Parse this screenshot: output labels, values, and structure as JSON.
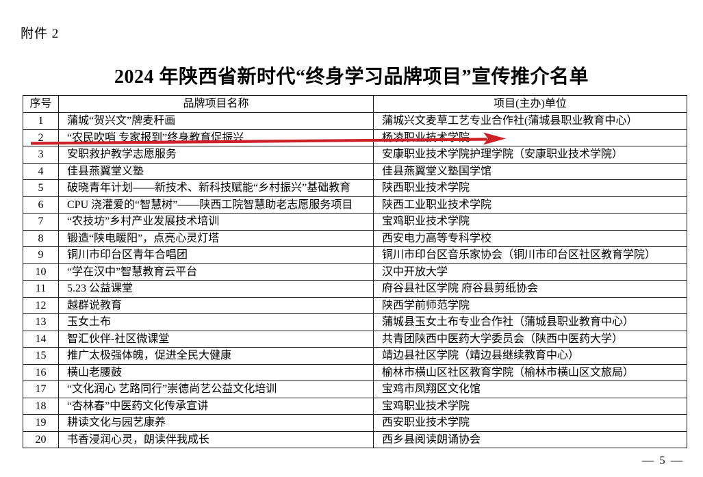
{
  "page": {
    "attachment_label": "附件 2",
    "title": "2024 年陕西省新时代“终身学习品牌项目”宣传推介名单",
    "page_number": "— 5 —"
  },
  "table": {
    "headers": [
      "序号",
      "品牌项目名称",
      "项目(主办)单位"
    ],
    "rows": [
      [
        "1",
        "蒲城“贺兴文”牌麦秆画",
        "蒲城兴文麦草工艺专业合作社(蒲城县职业教育中心）"
      ],
      [
        "2",
        "“农民吹哨 专家报到”终身教育促振兴",
        "杨凌职业技术学院"
      ],
      [
        "3",
        "安职救护教学志愿服务",
        "安康职业技术学院护理学院（安康职业技术学院）"
      ],
      [
        "4",
        "佳县燕翼堂义塾",
        "佳县燕翼堂义塾国学馆"
      ],
      [
        "5",
        "破晓青年计划——新技术、新科技赋能“乡村振兴”基础教育",
        "陕西职业技术学院"
      ],
      [
        "6",
        "CPU 浇灌爱的“智慧树”——陕西工院智慧助老志愿服务项目",
        "陕西工业职业技术学院"
      ],
      [
        "7",
        "“农技坊”乡村产业发展技术培训",
        "宝鸡职业技术学院"
      ],
      [
        "8",
        "锻造“陕电暖阳”，点亮心灵灯塔",
        "西安电力高等专科学校"
      ],
      [
        "9",
        "铜川市印台区青年合唱团",
        "铜川市印台区音乐家协会（铜川市印台区社区教育学院）"
      ],
      [
        "10",
        "“学在汉中”智慧教育云平台",
        "汉中开放大学"
      ],
      [
        "11",
        "5.23 公益课堂",
        "府谷县社区学院 府谷县剪纸协会"
      ],
      [
        "12",
        "越群说教育",
        "陕西学前师范学院"
      ],
      [
        "13",
        "玉女土布",
        "蒲城县玉女土布专业合作社（蒲城县职业教育中心）"
      ],
      [
        "14",
        "智汇伙伴-社区微课堂",
        "共青团陕西中医药大学委员会（陕西中医药大学）"
      ],
      [
        "15",
        "推广太极强体魄，促进全民大健康",
        "靖边县社区学院（靖边县继续教育中心）"
      ],
      [
        "16",
        "横山老腰鼓",
        "榆林市横山区社区教育学院（榆林市横山区文旅局）"
      ],
      [
        "17",
        "“文化润心 艺路同行”崇德尚艺公益文化培训",
        "宝鸡市凤翔区文化馆"
      ],
      [
        "18",
        "“杏林春”中医药文化传承宣讲",
        "宝鸡职业技术学院"
      ],
      [
        "19",
        "耕读文化与园艺康养",
        "西安职业技术学院"
      ],
      [
        "20",
        "书香浸润心灵，朗读伴我成长",
        "西乡县阅读朗诵协会"
      ]
    ]
  },
  "annotation": {
    "arrow_color": "#ce2127",
    "target_row": "2"
  }
}
